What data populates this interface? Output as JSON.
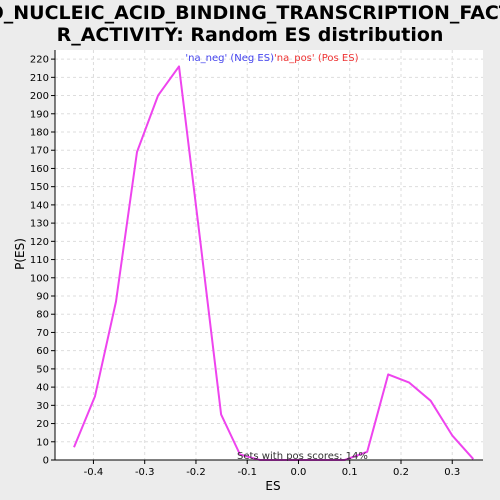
{
  "chart_data": {
    "type": "line",
    "title_line1": "GO_NUCLEIC_ACID_BINDING_TRANSCRIPTION_FACTO",
    "title_line2": "R_ACTIVITY: Random ES distribution",
    "xlabel": "ES",
    "ylabel": "P(ES)",
    "xlim": [
      -0.475,
      0.36
    ],
    "ylim": [
      0,
      225
    ],
    "x_ticks": [
      -0.4,
      -0.3,
      -0.2,
      -0.1,
      0.0,
      0.1,
      0.2,
      0.3
    ],
    "x_tick_labels": [
      "-0.4",
      "-0.3",
      "-0.2",
      "-0.1",
      "0.0",
      "0.1",
      "0.2",
      "0.3"
    ],
    "y_ticks": [
      0,
      10,
      20,
      30,
      40,
      50,
      60,
      70,
      80,
      90,
      100,
      110,
      120,
      130,
      140,
      150,
      160,
      170,
      180,
      190,
      200,
      210,
      220
    ],
    "grid": true,
    "legend": {
      "placement": "top-center",
      "entries": [
        {
          "label": "'na_neg' (Neg ES)",
          "color": "#4444ee"
        },
        {
          "label": "'na_pos' (Pos ES)",
          "color": "#ee3333"
        }
      ]
    },
    "annotation": "Sets with pos scores: 14%",
    "series": [
      {
        "color": "#ee44ee",
        "x": [
          -0.438,
          -0.397,
          -0.356,
          -0.315,
          -0.274,
          -0.233,
          -0.192,
          -0.151,
          -0.114,
          -0.075,
          0.01,
          0.09,
          0.134,
          0.175,
          0.216,
          0.258,
          0.3,
          0.341
        ],
        "y": [
          7,
          35,
          87,
          169,
          200,
          216,
          121,
          25,
          3,
          0,
          0,
          0,
          4.5,
          47,
          42.5,
          32.5,
          13.5,
          0.5
        ]
      }
    ]
  }
}
